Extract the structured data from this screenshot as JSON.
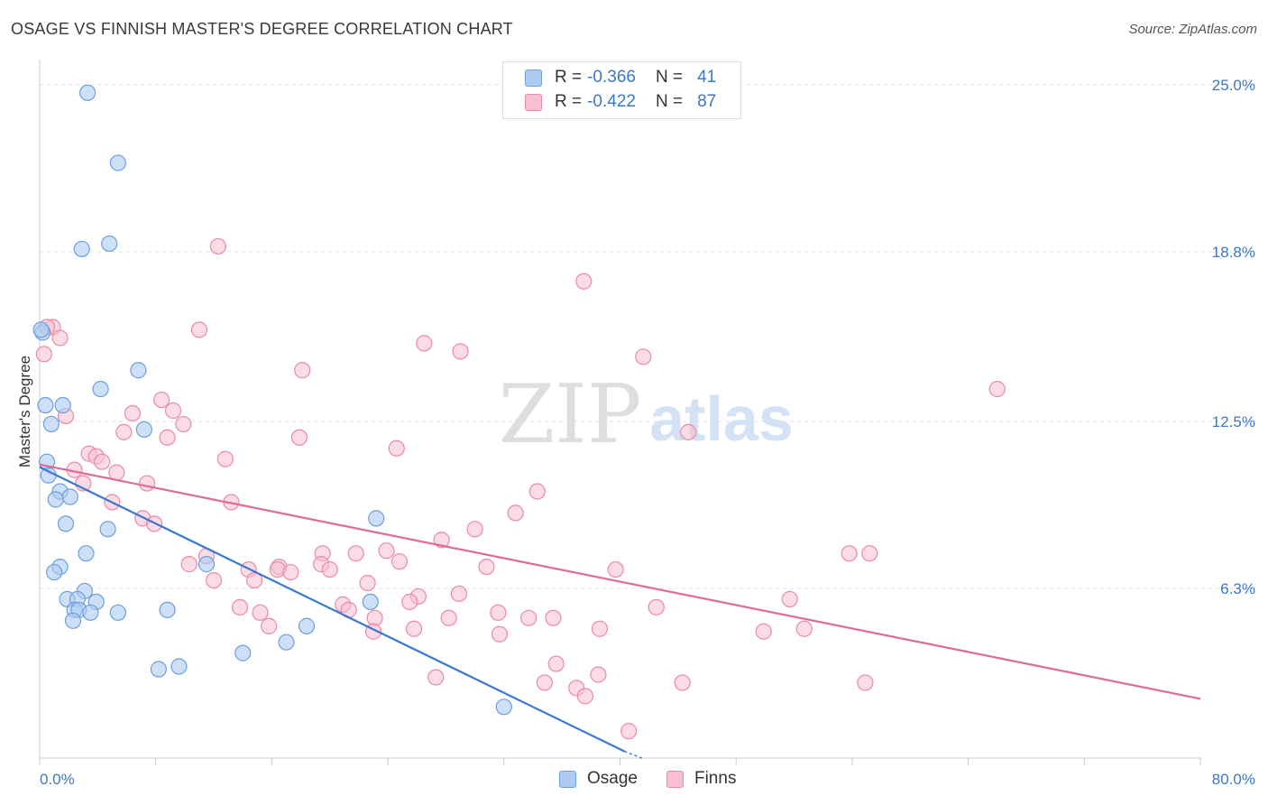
{
  "title": "OSAGE VS FINNISH MASTER'S DEGREE CORRELATION CHART",
  "source": "Source: ZipAtlas.com",
  "watermark": {
    "zip": "ZIP",
    "atlas": "atlas"
  },
  "legend": {
    "rows": [
      {
        "series": "Osage",
        "r_label": "R =",
        "r_value": "-0.366",
        "n_label": "N =",
        "n_value": "41"
      },
      {
        "series": "Finns",
        "r_label": "R =",
        "r_value": "-0.422",
        "n_label": "N =",
        "n_value": "87"
      }
    ]
  },
  "bottom_legend": [
    {
      "name": "Osage"
    },
    {
      "name": "Finns"
    }
  ],
  "colors": {
    "osage_fill": "#aecbf2",
    "osage_stroke": "#6d9fdc",
    "osage_line": "#3a78d6",
    "finns_fill": "#f7bfd0",
    "finns_stroke": "#ea8aa8",
    "finns_line": "#e06a96",
    "tick_label": "#3a78c9",
    "grid": "#e3e3e3",
    "axis": "#cccccc"
  },
  "chart_data": {
    "type": "scatter",
    "title": "OSAGE VS FINNISH MASTER'S DEGREE CORRELATION CHART",
    "xlabel": "",
    "ylabel": "Master's Degree",
    "xlim": [
      0,
      80
    ],
    "ylim": [
      0,
      25.8
    ],
    "x_tick_labels": [
      "0.0%",
      "80.0%"
    ],
    "y_ticks": [
      6.3,
      12.5,
      18.8,
      25.0
    ],
    "y_tick_labels": [
      "6.3%",
      "12.5%",
      "18.8%",
      "25.0%"
    ],
    "grid": true,
    "legend_position": "top-center",
    "series": [
      {
        "name": "Osage",
        "trend": {
          "x": [
            0,
            40.3
          ],
          "y": [
            10.8,
            0.25
          ]
        },
        "trend_dashed_end": {
          "x": [
            40.3,
            41.5
          ],
          "y": [
            0.25,
            0
          ]
        },
        "points": [
          {
            "x": 3.3,
            "y": 24.7
          },
          {
            "x": 5.4,
            "y": 22.1
          },
          {
            "x": 2.9,
            "y": 18.9
          },
          {
            "x": 4.8,
            "y": 19.1
          },
          {
            "x": 0.2,
            "y": 15.8
          },
          {
            "x": 6.8,
            "y": 14.4
          },
          {
            "x": 4.2,
            "y": 13.7
          },
          {
            "x": 0.4,
            "y": 13.1
          },
          {
            "x": 1.6,
            "y": 13.1
          },
          {
            "x": 0.8,
            "y": 12.4
          },
          {
            "x": 7.2,
            "y": 12.2
          },
          {
            "x": 0.5,
            "y": 11.0
          },
          {
            "x": 0.6,
            "y": 10.5
          },
          {
            "x": 1.4,
            "y": 9.9
          },
          {
            "x": 1.1,
            "y": 9.6
          },
          {
            "x": 2.1,
            "y": 9.7
          },
          {
            "x": 1.8,
            "y": 8.7
          },
          {
            "x": 4.7,
            "y": 8.5
          },
          {
            "x": 23.2,
            "y": 8.9
          },
          {
            "x": 3.2,
            "y": 7.6
          },
          {
            "x": 1.4,
            "y": 7.1
          },
          {
            "x": 1.0,
            "y": 6.9
          },
          {
            "x": 11.5,
            "y": 7.2
          },
          {
            "x": 3.1,
            "y": 6.2
          },
          {
            "x": 1.9,
            "y": 5.9
          },
          {
            "x": 2.6,
            "y": 5.9
          },
          {
            "x": 3.9,
            "y": 5.8
          },
          {
            "x": 22.8,
            "y": 5.8
          },
          {
            "x": 2.4,
            "y": 5.5
          },
          {
            "x": 2.7,
            "y": 5.5
          },
          {
            "x": 3.5,
            "y": 5.4
          },
          {
            "x": 5.4,
            "y": 5.4
          },
          {
            "x": 8.8,
            "y": 5.5
          },
          {
            "x": 2.3,
            "y": 5.1
          },
          {
            "x": 18.4,
            "y": 4.9
          },
          {
            "x": 17.0,
            "y": 4.3
          },
          {
            "x": 14.0,
            "y": 3.9
          },
          {
            "x": 9.6,
            "y": 3.4
          },
          {
            "x": 8.2,
            "y": 3.3
          },
          {
            "x": 32.0,
            "y": 1.9
          },
          {
            "x": 0.1,
            "y": 15.9
          }
        ]
      },
      {
        "name": "Finns",
        "trend": {
          "x": [
            0,
            80
          ],
          "y": [
            10.9,
            2.2
          ]
        },
        "points": [
          {
            "x": 12.3,
            "y": 19.0
          },
          {
            "x": 37.5,
            "y": 17.7
          },
          {
            "x": 0.9,
            "y": 16.0
          },
          {
            "x": 1.4,
            "y": 15.6
          },
          {
            "x": 11.0,
            "y": 15.9
          },
          {
            "x": 26.5,
            "y": 15.4
          },
          {
            "x": 29.0,
            "y": 15.1
          },
          {
            "x": 41.6,
            "y": 14.9
          },
          {
            "x": 18.1,
            "y": 14.4
          },
          {
            "x": 66.0,
            "y": 13.7
          },
          {
            "x": 8.4,
            "y": 13.3
          },
          {
            "x": 9.2,
            "y": 12.9
          },
          {
            "x": 6.4,
            "y": 12.8
          },
          {
            "x": 1.8,
            "y": 12.7
          },
          {
            "x": 9.9,
            "y": 12.4
          },
          {
            "x": 5.8,
            "y": 12.1
          },
          {
            "x": 44.7,
            "y": 12.1
          },
          {
            "x": 8.8,
            "y": 11.9
          },
          {
            "x": 17.9,
            "y": 11.9
          },
          {
            "x": 24.6,
            "y": 11.5
          },
          {
            "x": 3.4,
            "y": 11.3
          },
          {
            "x": 3.9,
            "y": 11.2
          },
          {
            "x": 12.8,
            "y": 11.1
          },
          {
            "x": 4.3,
            "y": 11.0
          },
          {
            "x": 2.4,
            "y": 10.7
          },
          {
            "x": 5.3,
            "y": 10.6
          },
          {
            "x": 3.0,
            "y": 10.2
          },
          {
            "x": 7.4,
            "y": 10.2
          },
          {
            "x": 34.3,
            "y": 9.9
          },
          {
            "x": 13.2,
            "y": 9.5
          },
          {
            "x": 5.0,
            "y": 9.5
          },
          {
            "x": 32.8,
            "y": 9.1
          },
          {
            "x": 7.1,
            "y": 8.9
          },
          {
            "x": 7.9,
            "y": 8.7
          },
          {
            "x": 30.0,
            "y": 8.5
          },
          {
            "x": 27.7,
            "y": 8.1
          },
          {
            "x": 11.5,
            "y": 7.5
          },
          {
            "x": 19.5,
            "y": 7.6
          },
          {
            "x": 21.8,
            "y": 7.6
          },
          {
            "x": 23.9,
            "y": 7.7
          },
          {
            "x": 55.8,
            "y": 7.6
          },
          {
            "x": 57.2,
            "y": 7.6
          },
          {
            "x": 24.8,
            "y": 7.3
          },
          {
            "x": 10.3,
            "y": 7.2
          },
          {
            "x": 16.5,
            "y": 7.1
          },
          {
            "x": 19.4,
            "y": 7.2
          },
          {
            "x": 30.8,
            "y": 7.1
          },
          {
            "x": 16.4,
            "y": 7.0
          },
          {
            "x": 14.4,
            "y": 7.0
          },
          {
            "x": 17.3,
            "y": 6.9
          },
          {
            "x": 20.0,
            "y": 7.0
          },
          {
            "x": 39.7,
            "y": 7.0
          },
          {
            "x": 12.0,
            "y": 6.6
          },
          {
            "x": 14.8,
            "y": 6.6
          },
          {
            "x": 22.6,
            "y": 6.5
          },
          {
            "x": 28.9,
            "y": 6.1
          },
          {
            "x": 26.1,
            "y": 6.0
          },
          {
            "x": 25.5,
            "y": 5.8
          },
          {
            "x": 51.7,
            "y": 5.9
          },
          {
            "x": 20.9,
            "y": 5.7
          },
          {
            "x": 13.8,
            "y": 5.6
          },
          {
            "x": 21.3,
            "y": 5.5
          },
          {
            "x": 42.5,
            "y": 5.6
          },
          {
            "x": 15.2,
            "y": 5.4
          },
          {
            "x": 31.6,
            "y": 5.4
          },
          {
            "x": 23.1,
            "y": 5.2
          },
          {
            "x": 28.2,
            "y": 5.2
          },
          {
            "x": 33.7,
            "y": 5.2
          },
          {
            "x": 35.4,
            "y": 5.2
          },
          {
            "x": 15.8,
            "y": 4.9
          },
          {
            "x": 25.8,
            "y": 4.8
          },
          {
            "x": 38.6,
            "y": 4.8
          },
          {
            "x": 52.7,
            "y": 4.8
          },
          {
            "x": 49.9,
            "y": 4.7
          },
          {
            "x": 23.0,
            "y": 4.7
          },
          {
            "x": 31.7,
            "y": 4.6
          },
          {
            "x": 35.6,
            "y": 3.5
          },
          {
            "x": 38.5,
            "y": 3.1
          },
          {
            "x": 27.3,
            "y": 3.0
          },
          {
            "x": 34.8,
            "y": 2.8
          },
          {
            "x": 44.3,
            "y": 2.8
          },
          {
            "x": 56.9,
            "y": 2.8
          },
          {
            "x": 37.0,
            "y": 2.6
          },
          {
            "x": 37.6,
            "y": 2.3
          },
          {
            "x": 40.6,
            "y": 1.0
          },
          {
            "x": 0.3,
            "y": 15.0
          },
          {
            "x": 0.5,
            "y": 16.0
          }
        ]
      }
    ]
  }
}
